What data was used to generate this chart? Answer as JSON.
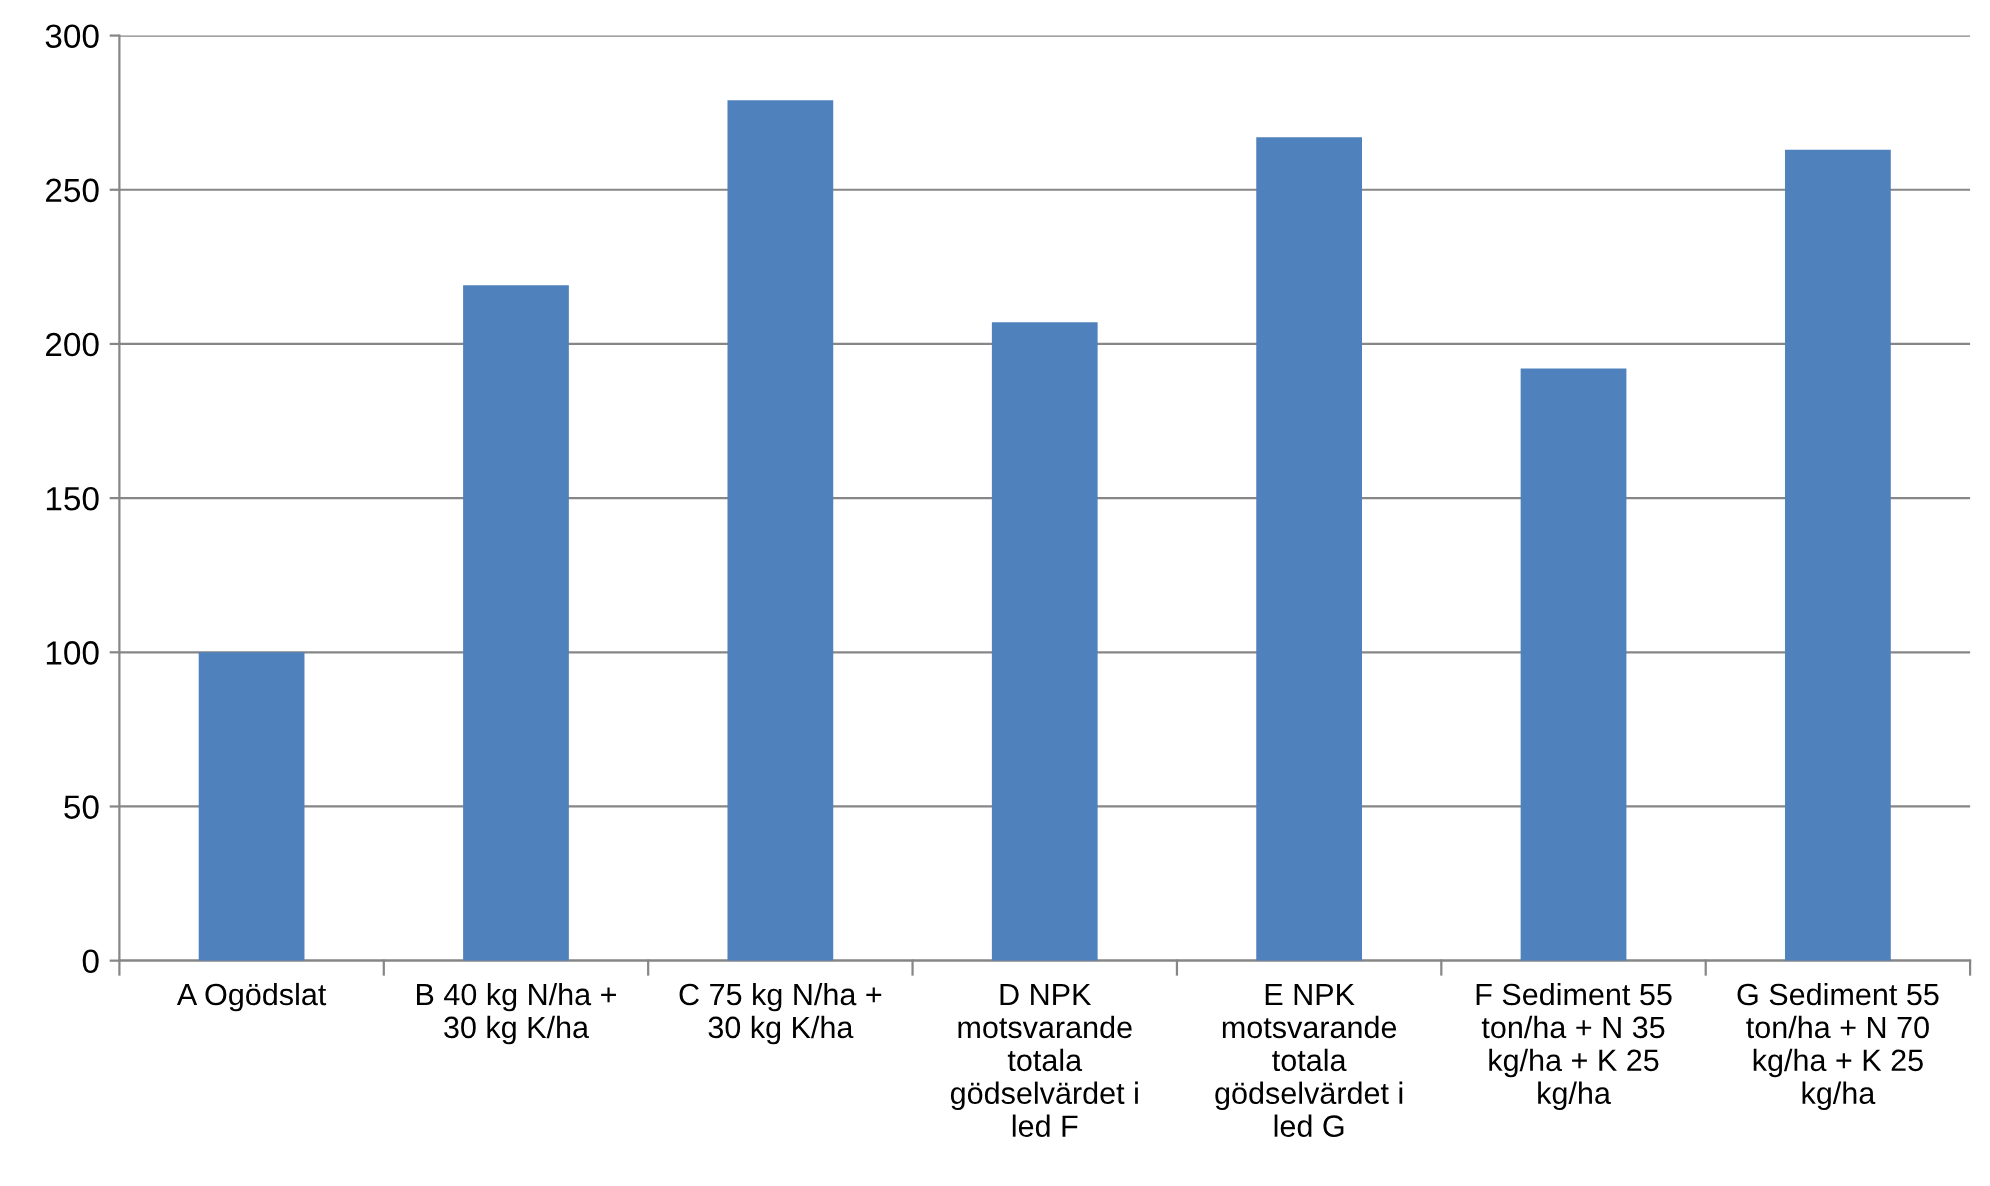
{
  "chart_data": {
    "type": "bar",
    "categories": [
      "A Ogödslat",
      "B 40 kg N/ha +\n30 kg K/ha",
      "C 75 kg N/ha +\n30 kg K/ha",
      "D NPK\nmotsvarande\ntotala\ngödselvärdet i\nled F",
      "E NPK\nmotsvarande\ntotala\ngödselvärdet i\nled G",
      "F Sediment 55\nton/ha + N 35\nkg/ha + K 25\nkg/ha",
      "G Sediment 55\nton/ha + N 70\nkg/ha + K 25\nkg/ha"
    ],
    "values": [
      100,
      219,
      279,
      207,
      267,
      192,
      263
    ],
    "color": "#4f81bd",
    "ylim": [
      0,
      300
    ],
    "yticks": [
      0,
      50,
      100,
      150,
      200,
      250,
      300
    ],
    "grid": "y",
    "legend": false
  }
}
